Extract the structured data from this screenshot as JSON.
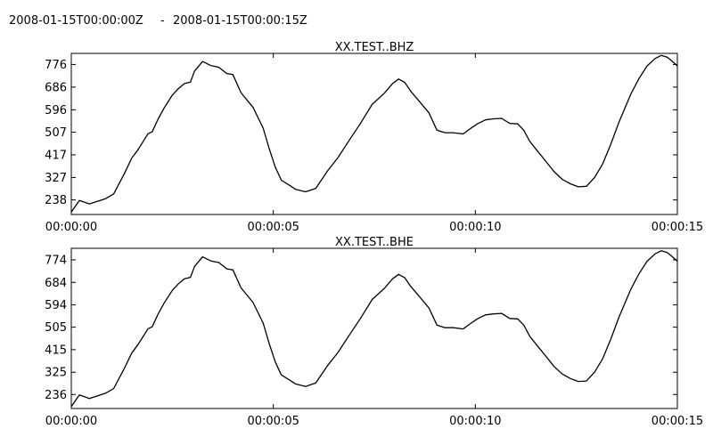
{
  "header": {
    "start_time": "2008-01-15T00:00:00Z",
    "separator": "-",
    "end_time": "2008-01-15T00:00:15Z"
  },
  "chart_data": [
    {
      "type": "line",
      "title": "XX.TEST..BHZ",
      "xlabel": "",
      "ylabel": "",
      "x_tick_labels": [
        "00:00:00",
        "00:00:05",
        "00:00:10",
        "00:00:15"
      ],
      "x_ticks": [
        0,
        5,
        10,
        15
      ],
      "xlim": [
        0,
        15
      ],
      "y_ticks": [
        238,
        327,
        417,
        507,
        596,
        686,
        776
      ],
      "y_tick_labels": [
        "238",
        "327",
        "417",
        "507",
        "596",
        "686",
        "776"
      ],
      "ylim": [
        180,
        820
      ],
      "grid": false,
      "color": "#000000",
      "x": [
        0,
        0.2,
        0.45,
        0.6,
        0.85,
        1.05,
        1.3,
        1.5,
        1.65,
        1.9,
        2.0,
        2.15,
        2.3,
        2.5,
        2.65,
        2.8,
        2.95,
        3.05,
        3.25,
        3.45,
        3.65,
        3.85,
        4.0,
        4.2,
        4.5,
        4.75,
        4.9,
        5.05,
        5.2,
        5.4,
        5.55,
        5.8,
        6.05,
        6.35,
        6.6,
        6.9,
        7.15,
        7.45,
        7.75,
        7.95,
        8.1,
        8.25,
        8.4,
        8.6,
        8.85,
        9.05,
        9.25,
        9.45,
        9.7,
        9.85,
        10.05,
        10.25,
        10.45,
        10.65,
        10.85,
        11.05,
        11.2,
        11.35,
        11.55,
        11.75,
        11.95,
        12.15,
        12.35,
        12.55,
        12.75,
        12.95,
        13.15,
        13.35,
        13.55,
        13.85,
        14.05,
        14.25,
        14.45,
        14.6,
        14.75,
        14.9,
        15.0
      ],
      "y": [
        190,
        236,
        222,
        230,
        243,
        262,
        338,
        405,
        437,
        501,
        508,
        560,
        604,
        654,
        680,
        700,
        706,
        750,
        788,
        772,
        765,
        740,
        736,
        664,
        605,
        523,
        441,
        368,
        316,
        296,
        280,
        270,
        284,
        355,
        406,
        480,
        540,
        618,
        662,
        700,
        718,
        705,
        670,
        632,
        584,
        515,
        505,
        505,
        500,
        518,
        540,
        556,
        560,
        562,
        542,
        540,
        515,
        470,
        430,
        390,
        350,
        320,
        302,
        290,
        292,
        327,
        380,
        458,
        545,
        659,
        720,
        770,
        800,
        812,
        805,
        785,
        770
      ]
    },
    {
      "type": "line",
      "title": "XX.TEST..BHE",
      "xlabel": "",
      "ylabel": "",
      "x_tick_labels": [
        "00:00:00",
        "00:00:05",
        "00:00:10",
        "00:00:15"
      ],
      "x_ticks": [
        0,
        5,
        10,
        15
      ],
      "xlim": [
        0,
        15
      ],
      "y_ticks": [
        236,
        325,
        415,
        505,
        594,
        684,
        774
      ],
      "y_tick_labels": [
        "236",
        "325",
        "415",
        "505",
        "594",
        "684",
        "774"
      ],
      "ylim": [
        180,
        820
      ],
      "grid": false,
      "color": "#000000",
      "x": [
        0,
        0.2,
        0.45,
        0.6,
        0.85,
        1.05,
        1.3,
        1.5,
        1.65,
        1.9,
        2.0,
        2.15,
        2.3,
        2.5,
        2.65,
        2.8,
        2.95,
        3.05,
        3.25,
        3.45,
        3.65,
        3.85,
        4.0,
        4.2,
        4.5,
        4.75,
        4.9,
        5.05,
        5.2,
        5.4,
        5.55,
        5.8,
        6.05,
        6.35,
        6.6,
        6.9,
        7.15,
        7.45,
        7.75,
        7.95,
        8.1,
        8.25,
        8.4,
        8.6,
        8.85,
        9.05,
        9.25,
        9.45,
        9.7,
        9.85,
        10.05,
        10.25,
        10.45,
        10.65,
        10.85,
        11.05,
        11.2,
        11.35,
        11.55,
        11.75,
        11.95,
        12.15,
        12.35,
        12.55,
        12.75,
        12.95,
        13.15,
        13.35,
        13.55,
        13.85,
        14.05,
        14.25,
        14.45,
        14.6,
        14.75,
        14.9,
        15.0
      ],
      "y": [
        188,
        234,
        220,
        228,
        241,
        260,
        336,
        403,
        435,
        499,
        506,
        558,
        602,
        652,
        678,
        698,
        704,
        748,
        786,
        770,
        763,
        738,
        734,
        662,
        603,
        521,
        439,
        366,
        314,
        294,
        278,
        268,
        282,
        353,
        404,
        478,
        538,
        616,
        660,
        698,
        716,
        703,
        668,
        630,
        582,
        513,
        503,
        503,
        498,
        516,
        538,
        554,
        558,
        560,
        540,
        538,
        513,
        468,
        428,
        388,
        348,
        318,
        300,
        288,
        290,
        325,
        378,
        456,
        543,
        657,
        718,
        768,
        798,
        810,
        803,
        783,
        768
      ]
    }
  ]
}
